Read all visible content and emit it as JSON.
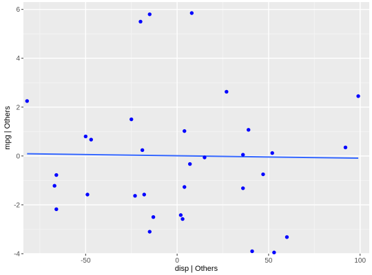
{
  "chart_data": {
    "type": "scatter",
    "xlabel": "disp  | Others",
    "ylabel": "mpg  | Others",
    "xlim": [
      -84,
      105
    ],
    "ylim": [
      -4.0,
      6.3
    ],
    "x_ticks": [
      -50,
      0,
      50,
      100
    ],
    "y_ticks": [
      -4,
      -2,
      0,
      2,
      4,
      6
    ],
    "x_tick_labels": [
      "-50",
      "0",
      "50",
      "100"
    ],
    "y_tick_labels": [
      "-4",
      "-2",
      "0",
      "2",
      "4",
      "6"
    ],
    "grid": true,
    "points": [
      {
        "x": -82,
        "y": 2.25
      },
      {
        "x": -67,
        "y": -1.22
      },
      {
        "x": -66,
        "y": -0.78
      },
      {
        "x": -66,
        "y": -2.18
      },
      {
        "x": -50,
        "y": 0.8
      },
      {
        "x": -49,
        "y": -1.58
      },
      {
        "x": -47,
        "y": 0.67
      },
      {
        "x": -25,
        "y": 1.5
      },
      {
        "x": -23,
        "y": -1.63
      },
      {
        "x": -20,
        "y": 5.5
      },
      {
        "x": -19,
        "y": 0.24
      },
      {
        "x": -18,
        "y": -1.58
      },
      {
        "x": -15,
        "y": 5.8
      },
      {
        "x": -15,
        "y": -3.1
      },
      {
        "x": -13,
        "y": -2.5
      },
      {
        "x": 2,
        "y": -2.42
      },
      {
        "x": 3,
        "y": -2.58
      },
      {
        "x": 4,
        "y": 1.02
      },
      {
        "x": 4,
        "y": -1.27
      },
      {
        "x": 7,
        "y": -0.33
      },
      {
        "x": 8,
        "y": 5.85
      },
      {
        "x": 15,
        "y": -0.06
      },
      {
        "x": 27,
        "y": 2.63
      },
      {
        "x": 36,
        "y": -1.32
      },
      {
        "x": 36,
        "y": 0.05
      },
      {
        "x": 39,
        "y": 1.07
      },
      {
        "x": 41,
        "y": -3.9
      },
      {
        "x": 47,
        "y": -0.75
      },
      {
        "x": 52,
        "y": 0.12
      },
      {
        "x": 53,
        "y": -3.95
      },
      {
        "x": 60,
        "y": -3.32
      },
      {
        "x": 92,
        "y": 0.35
      },
      {
        "x": 99,
        "y": 2.45
      }
    ],
    "trend_line": {
      "x": [
        -82,
        99
      ],
      "y": [
        0.09,
        -0.09
      ]
    },
    "colors": {
      "points": "#0000ff",
      "trend": "#3366ff",
      "panel": "#ebebeb",
      "grid_major": "#ffffff",
      "grid_minor": "#f5f5f5"
    }
  }
}
